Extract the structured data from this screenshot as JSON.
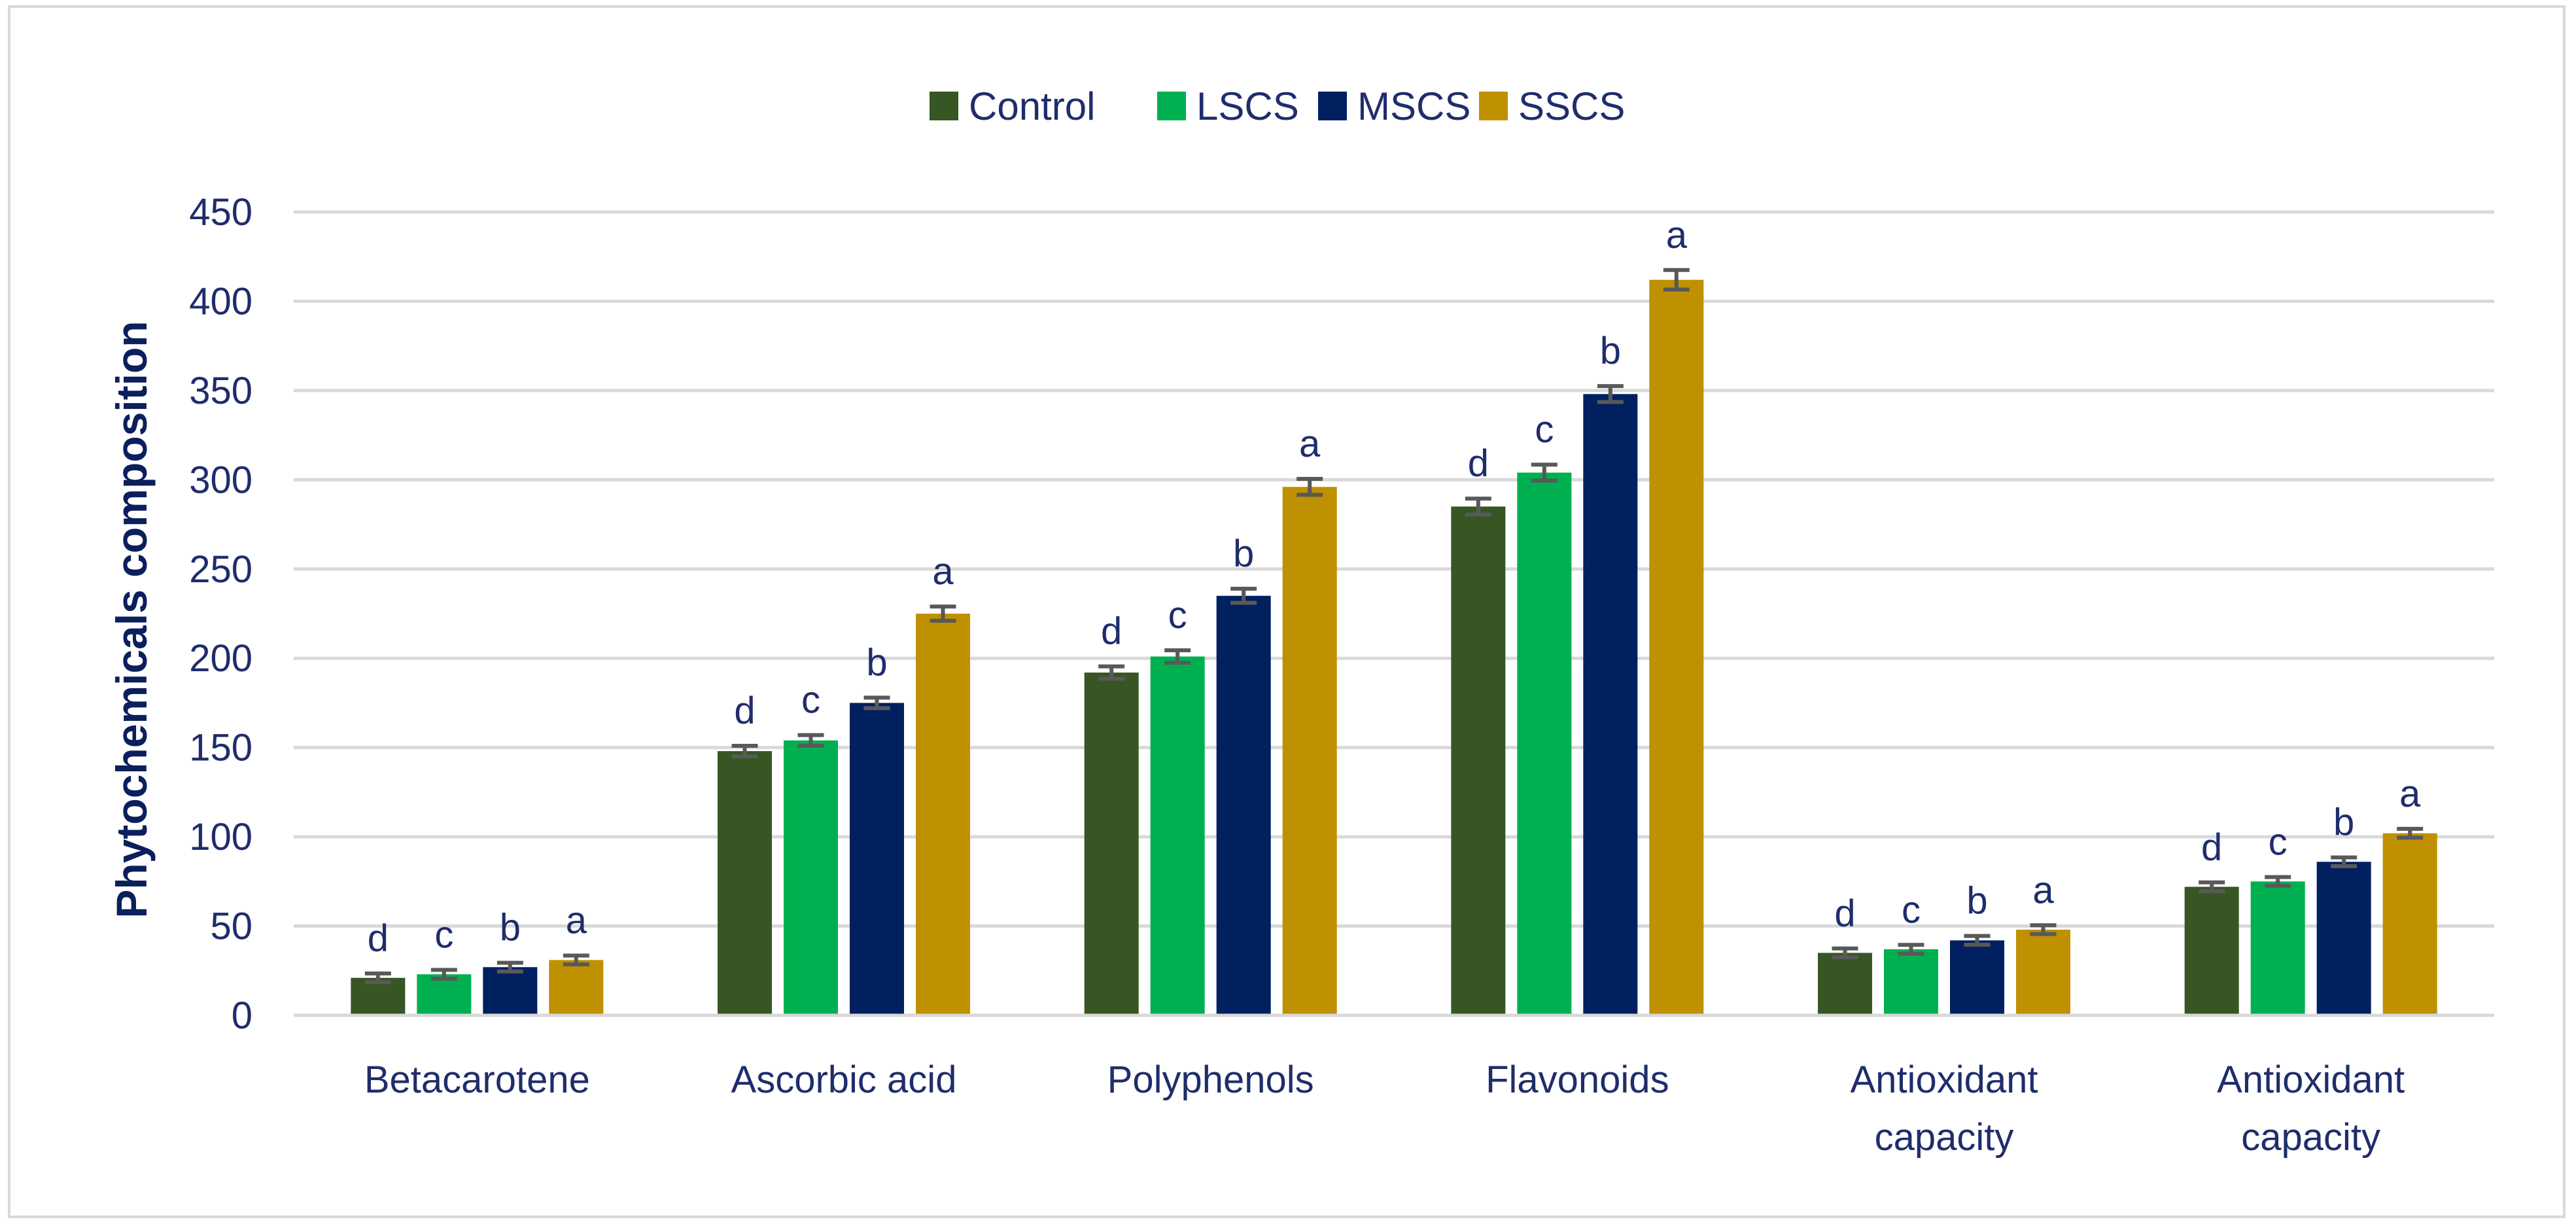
{
  "chart_data": {
    "type": "bar",
    "title": "",
    "xlabel": "",
    "ylabel": "Phytochemicals composition",
    "ylim": [
      0,
      450
    ],
    "yticks": [
      0,
      50,
      100,
      150,
      200,
      250,
      300,
      350,
      400,
      450
    ],
    "grid": true,
    "legend_position": "top-center",
    "categories": [
      [
        "Betacarotene"
      ],
      [
        "Ascorbic acid"
      ],
      [
        "Polyphenols"
      ],
      [
        "Flavonoids"
      ],
      [
        "Antioxidant",
        "capacity"
      ],
      [
        "Antioxidant",
        "capacity"
      ]
    ],
    "series": [
      {
        "name": "Control",
        "color": "#375623",
        "values": [
          21,
          148,
          192,
          285,
          35,
          72
        ],
        "errors": [
          1,
          1.5,
          2,
          3,
          1,
          1
        ],
        "significance": [
          "d",
          "d",
          "d",
          "d",
          "d",
          "d"
        ]
      },
      {
        "name": "LSCS",
        "color": "#00b050",
        "values": [
          23,
          154,
          201,
          304,
          37,
          75
        ],
        "errors": [
          1,
          1.5,
          2,
          3,
          1,
          1
        ],
        "significance": [
          "c",
          "c",
          "c",
          "c",
          "c",
          "c"
        ]
      },
      {
        "name": "MSCS",
        "color": "#002060",
        "values": [
          27,
          175,
          235,
          348,
          42,
          86
        ],
        "errors": [
          1,
          1.5,
          2.5,
          3,
          1,
          1
        ],
        "significance": [
          "b",
          "b",
          "b",
          "b",
          "b",
          "b"
        ]
      },
      {
        "name": "SSCS",
        "color": "#bf9000",
        "values": [
          31,
          225,
          296,
          412,
          48,
          102
        ],
        "errors": [
          1,
          2.5,
          3,
          4,
          1,
          1
        ],
        "significance": [
          "a",
          "a",
          "a",
          "a",
          "a",
          "a"
        ]
      }
    ]
  }
}
